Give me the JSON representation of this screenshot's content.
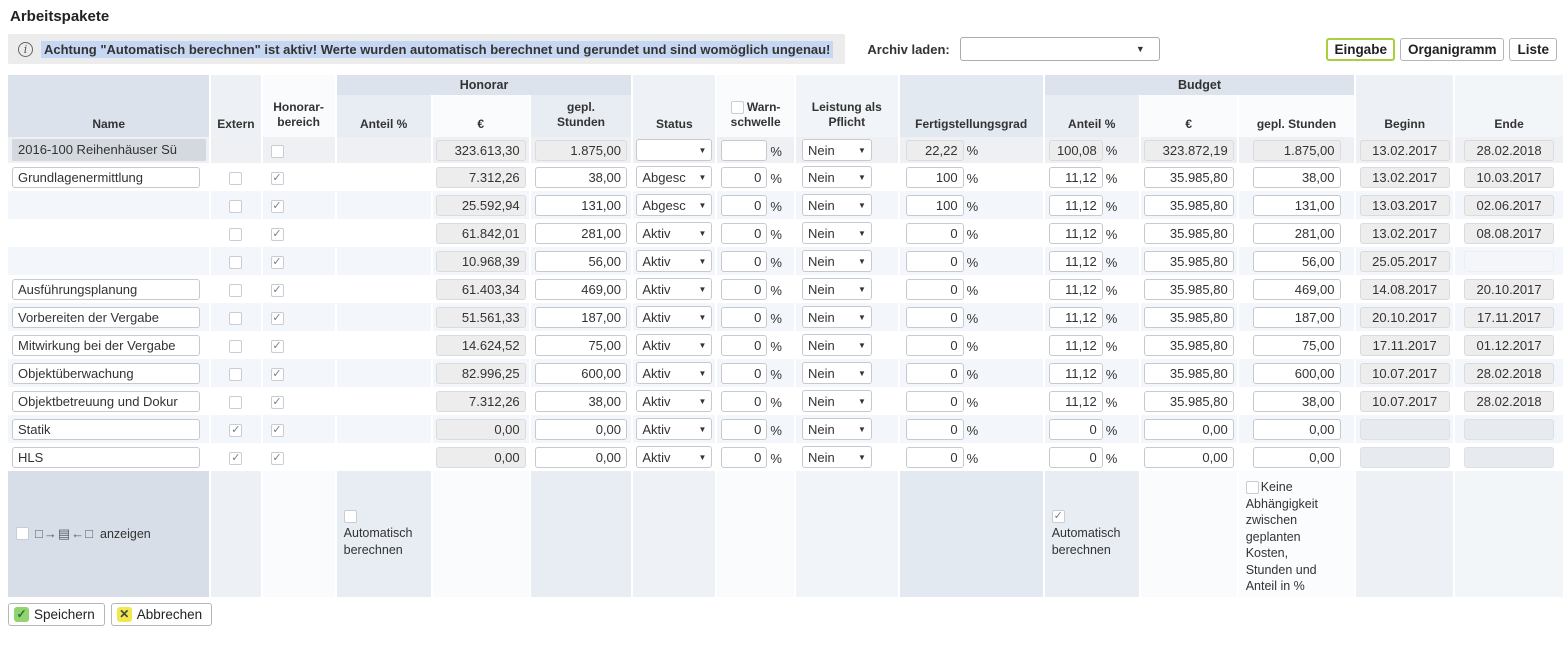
{
  "colors": {
    "highlight_blue": "#c5d7f2",
    "active_button_border": "#aacf3d",
    "save_icon_green": "#8fd470",
    "cancel_icon_yellow": "#f0e84e"
  },
  "page": {
    "title": "Arbeitspakete"
  },
  "topbar": {
    "info_glyph": "i",
    "warning_text": "Achtung \"Automatisch berechnen\" ist aktiv! Werte wurden automatisch berechnet und gerundet und sind womöglich ungenau!",
    "archive_label": "Archiv laden:",
    "archive_value": "",
    "view_buttons": [
      {
        "label": "Eingabe",
        "active": true
      },
      {
        "label": "Organigramm",
        "active": false
      },
      {
        "label": "Liste",
        "active": false
      }
    ]
  },
  "table": {
    "groups": {
      "honorar": "Honorar",
      "budget": "Budget"
    },
    "headers": {
      "name": "Name",
      "extern": "Extern",
      "honorarbereich": "Honorar-\nbereich",
      "h_anteil": "Anteil %",
      "h_euro": "€",
      "h_stunden": "gepl.\nStunden",
      "status": "Status",
      "warnschwelle": "Warn-\nschwelle",
      "leistung": "Leistung als\nPflicht",
      "fertigstellungsgrad": "Fertigstellungsgrad",
      "b_anteil": "Anteil %",
      "b_euro": "€",
      "b_stunden": "gepl. Stunden",
      "beginn": "Beginn",
      "ende": "Ende"
    },
    "unit_percent": "%",
    "rows": [
      {
        "kind": "project",
        "name": "2016-100 Reihenhäuser Sü",
        "extern": null,
        "hb": false,
        "h_anteil": "",
        "h_euro": "323.613,30",
        "h_stunden": "1.875,00",
        "status": "",
        "warn": "",
        "leistung": "Nein",
        "fertig": "22,22",
        "b_anteil": "100,08",
        "b_euro": "323.872,19",
        "b_stunden": "1.875,00",
        "beginn": "13.02.2017",
        "ende": "28.02.2018"
      },
      {
        "kind": "wp",
        "name": "Grundlagenermittlung",
        "extern": false,
        "hb": true,
        "h_euro": "7.312,26",
        "h_stunden": "38,00",
        "status": "Abgesc",
        "warn": "0",
        "leistung": "Nein",
        "fertig": "100",
        "b_anteil": "11,12",
        "b_euro": "35.985,80",
        "b_stunden": "38,00",
        "beginn": "13.02.2017",
        "ende": "10.03.2017"
      },
      {
        "kind": "wp",
        "name": null,
        "extern": false,
        "hb": true,
        "h_euro": "25.592,94",
        "h_stunden": "131,00",
        "status": "Abgesc",
        "warn": "0",
        "leistung": "Nein",
        "fertig": "100",
        "b_anteil": "11,12",
        "b_euro": "35.985,80",
        "b_stunden": "131,00",
        "beginn": "13.03.2017",
        "ende": "02.06.2017"
      },
      {
        "kind": "wp",
        "name": null,
        "extern": false,
        "hb": true,
        "h_euro": "61.842,01",
        "h_stunden": "281,00",
        "status": "Aktiv",
        "warn": "0",
        "leistung": "Nein",
        "fertig": "0",
        "b_anteil": "11,12",
        "b_euro": "35.985,80",
        "b_stunden": "281,00",
        "beginn": "13.02.2017",
        "ende": "08.08.2017"
      },
      {
        "kind": "wp",
        "name": null,
        "extern": false,
        "hb": true,
        "h_euro": "10.968,39",
        "h_stunden": "56,00",
        "status": "Aktiv",
        "warn": "0",
        "leistung": "Nein",
        "fertig": "0",
        "b_anteil": "11,12",
        "b_euro": "35.985,80",
        "b_stunden": "56,00",
        "beginn": "25.05.2017",
        "ende": ""
      },
      {
        "kind": "wp",
        "name": "Ausführungsplanung",
        "extern": false,
        "hb": true,
        "h_euro": "61.403,34",
        "h_stunden": "469,00",
        "status": "Aktiv",
        "warn": "0",
        "leistung": "Nein",
        "fertig": "0",
        "b_anteil": "11,12",
        "b_euro": "35.985,80",
        "b_stunden": "469,00",
        "beginn": "14.08.2017",
        "ende": "20.10.2017"
      },
      {
        "kind": "wp",
        "name": "Vorbereiten der Vergabe",
        "extern": false,
        "hb": true,
        "h_euro": "51.561,33",
        "h_stunden": "187,00",
        "status": "Aktiv",
        "warn": "0",
        "leistung": "Nein",
        "fertig": "0",
        "b_anteil": "11,12",
        "b_euro": "35.985,80",
        "b_stunden": "187,00",
        "beginn": "20.10.2017",
        "ende": "17.11.2017"
      },
      {
        "kind": "wp",
        "name": "Mitwirkung bei der Vergabe",
        "extern": false,
        "hb": true,
        "h_euro": "14.624,52",
        "h_stunden": "75,00",
        "status": "Aktiv",
        "warn": "0",
        "leistung": "Nein",
        "fertig": "0",
        "b_anteil": "11,12",
        "b_euro": "35.985,80",
        "b_stunden": "75,00",
        "beginn": "17.11.2017",
        "ende": "01.12.2017"
      },
      {
        "kind": "wp",
        "name": "Objektüberwachung",
        "extern": false,
        "hb": true,
        "h_euro": "82.996,25",
        "h_stunden": "600,00",
        "status": "Aktiv",
        "warn": "0",
        "leistung": "Nein",
        "fertig": "0",
        "b_anteil": "11,12",
        "b_euro": "35.985,80",
        "b_stunden": "600,00",
        "beginn": "10.07.2017",
        "ende": "28.02.2018"
      },
      {
        "kind": "wp",
        "name": "Objektbetreuung und Dokur",
        "extern": false,
        "hb": true,
        "h_euro": "7.312,26",
        "h_stunden": "38,00",
        "status": "Aktiv",
        "warn": "0",
        "leistung": "Nein",
        "fertig": "0",
        "b_anteil": "11,12",
        "b_euro": "35.985,80",
        "b_stunden": "38,00",
        "beginn": "10.07.2017",
        "ende": "28.02.2018"
      },
      {
        "kind": "wp",
        "name": "Statik",
        "extern": true,
        "hb": true,
        "h_euro": "0,00",
        "h_stunden": "0,00",
        "status": "Aktiv",
        "warn": "0",
        "leistung": "Nein",
        "fertig": "0",
        "b_anteil": "0",
        "b_euro": "0,00",
        "b_stunden": "0,00",
        "beginn": null,
        "ende": null,
        "dates_disabled": true
      },
      {
        "kind": "wp",
        "name": "HLS",
        "extern": true,
        "hb": true,
        "h_euro": "0,00",
        "h_stunden": "0,00",
        "status": "Aktiv",
        "warn": "0",
        "leistung": "Nein",
        "fertig": "0",
        "b_anteil": "0",
        "b_euro": "0,00",
        "b_stunden": "0,00",
        "beginn": null,
        "ende": null,
        "dates_disabled": true
      }
    ]
  },
  "footer": {
    "hierarchy_icon": "□→▤←□",
    "anzeigen_label": "anzeigen",
    "auto_calc_label": "Automatisch berechnen",
    "honorar_auto_checked": false,
    "budget_auto_checked": true,
    "no_dependency_label": "Keine Abhängigkeit zwischen geplanten Kosten,  Stunden und Anteil in %"
  },
  "actions": {
    "save": "Speichern",
    "cancel": "Abbrechen"
  }
}
